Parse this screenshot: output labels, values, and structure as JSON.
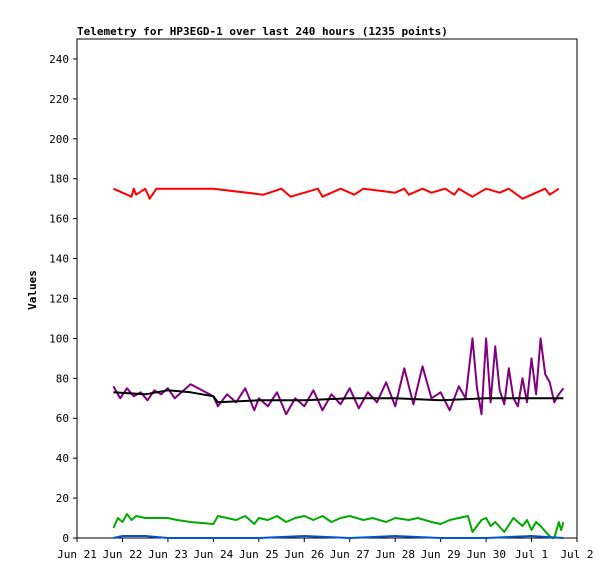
{
  "chart_data": {
    "type": "line",
    "title": "Telemetry for HP3EGD-1 over last 240 hours (1235 points)",
    "xlabel": "",
    "ylabel": "Values",
    "ylim": [
      0,
      250
    ],
    "xlim": [
      0,
      11
    ],
    "x_ticks": [
      {
        "x": 0,
        "label": "Jun 21"
      },
      {
        "x": 1,
        "label": "Jun 22"
      },
      {
        "x": 2,
        "label": "Jun 23"
      },
      {
        "x": 3,
        "label": "Jun 24"
      },
      {
        "x": 4,
        "label": "Jun 25"
      },
      {
        "x": 5,
        "label": "Jun 26"
      },
      {
        "x": 6,
        "label": "Jun 27"
      },
      {
        "x": 7,
        "label": "Jun 28"
      },
      {
        "x": 8,
        "label": "Jun 29"
      },
      {
        "x": 9,
        "label": "Jun 30"
      },
      {
        "x": 10,
        "label": "Jul 1"
      },
      {
        "x": 11,
        "label": "Jul 2"
      }
    ],
    "y_ticks": [
      0,
      20,
      40,
      60,
      80,
      100,
      120,
      140,
      160,
      180,
      200,
      220,
      240
    ],
    "grid": false,
    "legend": "none",
    "series": [
      {
        "color": "#ff0000",
        "x": [
          0.8,
          1.2,
          1.25,
          1.3,
          1.5,
          1.6,
          1.75,
          2.1,
          2.6,
          3.0,
          4.1,
          4.5,
          4.7,
          5.3,
          5.4,
          5.8,
          6.1,
          6.3,
          7.0,
          7.2,
          7.3,
          7.6,
          7.8,
          8.1,
          8.3,
          8.4,
          8.7,
          9.0,
          9.3,
          9.5,
          9.8,
          10.3,
          10.4,
          10.6
        ],
        "y": [
          175,
          171,
          175,
          172,
          175,
          170,
          175,
          175,
          175,
          175,
          172,
          175,
          171,
          175,
          171,
          175,
          172,
          175,
          173,
          175,
          172,
          175,
          173,
          175,
          172,
          175,
          171,
          175,
          173,
          175,
          170,
          175,
          172,
          175
        ]
      },
      {
        "color": "#800080",
        "x": [
          0.8,
          0.95,
          1.1,
          1.25,
          1.4,
          1.55,
          1.7,
          1.85,
          2.0,
          2.15,
          2.3,
          2.5,
          3.0,
          3.1,
          3.3,
          3.5,
          3.7,
          3.9,
          4.0,
          4.2,
          4.4,
          4.6,
          4.8,
          5.0,
          5.2,
          5.4,
          5.6,
          5.8,
          6.0,
          6.2,
          6.4,
          6.6,
          6.8,
          7.0,
          7.2,
          7.4,
          7.6,
          7.8,
          8.0,
          8.2,
          8.4,
          8.55,
          8.7,
          8.8,
          8.9,
          9.0,
          9.1,
          9.2,
          9.3,
          9.4,
          9.5,
          9.6,
          9.7,
          9.8,
          9.9,
          10.0,
          10.1,
          10.2,
          10.3,
          10.4,
          10.5,
          10.6,
          10.7
        ],
        "y": [
          76,
          70,
          75,
          71,
          73,
          69,
          74,
          72,
          75,
          70,
          73,
          77,
          71,
          66,
          72,
          68,
          75,
          64,
          70,
          66,
          73,
          62,
          70,
          66,
          74,
          64,
          72,
          67,
          75,
          65,
          73,
          68,
          78,
          66,
          85,
          67,
          86,
          70,
          73,
          64,
          76,
          70,
          100,
          75,
          62,
          100,
          68,
          96,
          74,
          67,
          85,
          70,
          66,
          80,
          68,
          90,
          72,
          100,
          82,
          78,
          68,
          72,
          75
        ]
      },
      {
        "color": "#000000",
        "x": [
          0.8,
          1.5,
          2.0,
          2.5,
          3.0,
          3.1,
          4.0,
          5.0,
          6.0,
          7.0,
          8.0,
          9.0,
          10.0,
          10.7
        ],
        "y": [
          73,
          72,
          74,
          73,
          71,
          68,
          69,
          69,
          70,
          70,
          69,
          70,
          70,
          70
        ]
      },
      {
        "color": "#00aa00",
        "x": [
          0.8,
          0.9,
          1.0,
          1.1,
          1.2,
          1.3,
          1.5,
          1.7,
          2.0,
          2.2,
          2.5,
          3.0,
          3.1,
          3.3,
          3.5,
          3.7,
          3.9,
          4.0,
          4.2,
          4.4,
          4.6,
          4.8,
          5.0,
          5.2,
          5.4,
          5.6,
          5.8,
          6.0,
          6.3,
          6.5,
          6.8,
          7.0,
          7.3,
          7.5,
          7.8,
          8.0,
          8.2,
          8.4,
          8.6,
          8.7,
          8.9,
          9.0,
          9.1,
          9.2,
          9.4,
          9.6,
          9.8,
          9.9,
          10.0,
          10.1,
          10.2,
          10.35,
          10.45,
          10.5,
          10.6,
          10.65,
          10.7
        ],
        "y": [
          5,
          10,
          8,
          12,
          9,
          11,
          10,
          10,
          10,
          9,
          8,
          7,
          11,
          10,
          9,
          11,
          7,
          10,
          9,
          11,
          8,
          10,
          11,
          9,
          11,
          8,
          10,
          11,
          9,
          10,
          8,
          10,
          9,
          10,
          8,
          7,
          9,
          10,
          11,
          3,
          9,
          10,
          6,
          8,
          3,
          10,
          6,
          9,
          4,
          8,
          6,
          2,
          0,
          0,
          8,
          4,
          8
        ]
      },
      {
        "color": "#0055cc",
        "x": [
          0.8,
          1.0,
          1.5,
          2.0,
          3.0,
          4.0,
          5.0,
          6.0,
          7.0,
          8.0,
          9.0,
          10.0,
          10.7
        ],
        "y": [
          0,
          1,
          1,
          0,
          0,
          0,
          1,
          0,
          1,
          0,
          0,
          1,
          0
        ]
      }
    ]
  }
}
